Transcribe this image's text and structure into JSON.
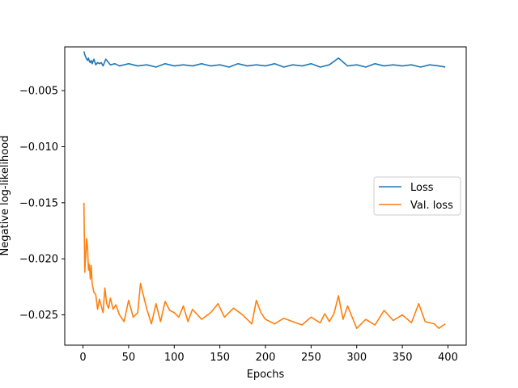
{
  "chart_data": {
    "type": "line",
    "title": "",
    "xlabel": "Epochs",
    "ylabel": "Negative log-likelihood",
    "xlim": [
      -20,
      420
    ],
    "ylim": [
      -0.0277,
      -0.0011
    ],
    "xticks": [
      0,
      50,
      100,
      150,
      200,
      250,
      300,
      350,
      400
    ],
    "xtick_labels": [
      "0",
      "50",
      "100",
      "150",
      "200",
      "250",
      "300",
      "350",
      "400"
    ],
    "yticks": [
      -0.025,
      -0.02,
      -0.015,
      -0.01,
      -0.005
    ],
    "ytick_labels": [
      "−0.025",
      "−0.020",
      "−0.015",
      "−0.010",
      "−0.005"
    ],
    "grid": false,
    "legend_position": "center-right",
    "series": [
      {
        "name": "Loss",
        "color": "#1f77b4",
        "x": [
          1,
          2,
          3,
          4,
          5,
          6,
          7,
          8,
          9,
          10,
          12,
          14,
          16,
          18,
          20,
          22,
          25,
          30,
          35,
          40,
          45,
          50,
          60,
          70,
          80,
          90,
          100,
          110,
          120,
          130,
          140,
          150,
          160,
          170,
          180,
          190,
          200,
          210,
          220,
          230,
          240,
          250,
          260,
          270,
          280,
          290,
          300,
          310,
          320,
          330,
          340,
          350,
          360,
          370,
          380,
          390,
          397
        ],
        "y": [
          -0.0015,
          -0.0018,
          -0.002,
          -0.0022,
          -0.0023,
          -0.0021,
          -0.0024,
          -0.0025,
          -0.0023,
          -0.0026,
          -0.0022,
          -0.0027,
          -0.0025,
          -0.0026,
          -0.0025,
          -0.0028,
          -0.0022,
          -0.0027,
          -0.0026,
          -0.0028,
          -0.0027,
          -0.0026,
          -0.0028,
          -0.0027,
          -0.0029,
          -0.0026,
          -0.0028,
          -0.0027,
          -0.0028,
          -0.0026,
          -0.0028,
          -0.0027,
          -0.0029,
          -0.0026,
          -0.0028,
          -0.0027,
          -0.0028,
          -0.0026,
          -0.0029,
          -0.0027,
          -0.0028,
          -0.0026,
          -0.0029,
          -0.0027,
          -0.0021,
          -0.0028,
          -0.0027,
          -0.0029,
          -0.0026,
          -0.0028,
          -0.0027,
          -0.0028,
          -0.0027,
          -0.0029,
          -0.0027,
          -0.0028,
          -0.0029
        ]
      },
      {
        "name": "Val. loss",
        "color": "#ff7f0e",
        "x": [
          1,
          2,
          3,
          4,
          5,
          6,
          7,
          8,
          9,
          10,
          12,
          14,
          16,
          18,
          20,
          22,
          24,
          26,
          28,
          30,
          33,
          36,
          40,
          45,
          50,
          55,
          60,
          63,
          66,
          70,
          75,
          80,
          85,
          90,
          95,
          100,
          105,
          110,
          115,
          120,
          130,
          140,
          148,
          155,
          165,
          175,
          185,
          190,
          195,
          200,
          210,
          220,
          230,
          240,
          250,
          260,
          265,
          270,
          275,
          280,
          285,
          290,
          300,
          310,
          320,
          330,
          340,
          350,
          360,
          368,
          375,
          385,
          390,
          397
        ],
        "y": [
          -0.015,
          -0.0212,
          -0.0196,
          -0.0182,
          -0.019,
          -0.021,
          -0.0205,
          -0.0218,
          -0.0206,
          -0.0222,
          -0.023,
          -0.0232,
          -0.0245,
          -0.0236,
          -0.0242,
          -0.0248,
          -0.0226,
          -0.024,
          -0.0244,
          -0.0235,
          -0.0245,
          -0.0241,
          -0.025,
          -0.0256,
          -0.0237,
          -0.0252,
          -0.0248,
          -0.0222,
          -0.0232,
          -0.0245,
          -0.0258,
          -0.024,
          -0.0256,
          -0.0238,
          -0.0246,
          -0.0248,
          -0.0252,
          -0.0242,
          -0.0256,
          -0.0245,
          -0.0254,
          -0.0248,
          -0.024,
          -0.0252,
          -0.0244,
          -0.025,
          -0.0258,
          -0.0237,
          -0.0248,
          -0.0254,
          -0.0258,
          -0.0253,
          -0.0256,
          -0.0259,
          -0.0252,
          -0.0257,
          -0.0249,
          -0.0256,
          -0.0249,
          -0.0233,
          -0.0254,
          -0.0242,
          -0.0262,
          -0.0254,
          -0.0259,
          -0.0246,
          -0.0255,
          -0.025,
          -0.0257,
          -0.024,
          -0.0256,
          -0.0258,
          -0.0262,
          -0.0258
        ]
      }
    ]
  }
}
